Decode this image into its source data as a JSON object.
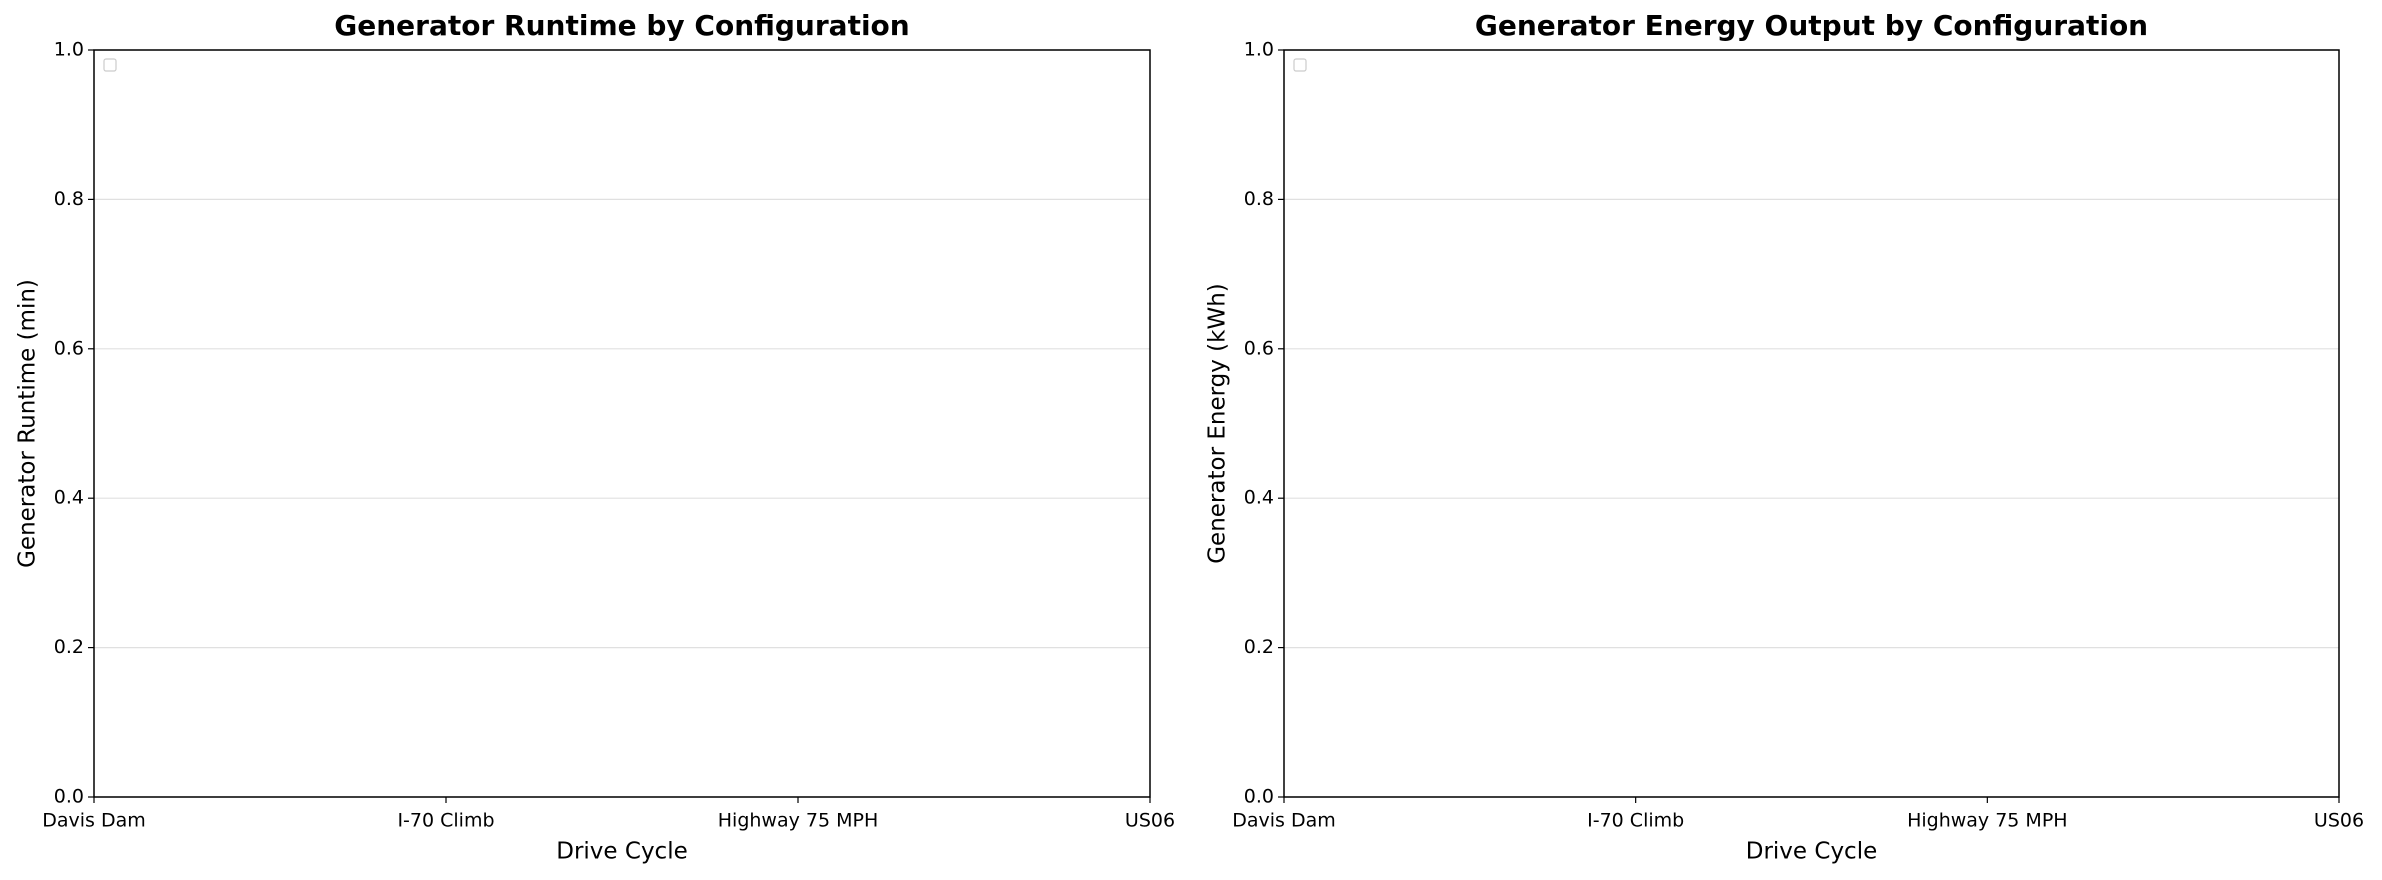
{
  "chart_data": [
    {
      "type": "bar",
      "title": "Generator Runtime by Configuration",
      "x_label": "Drive Cycle",
      "y_label": "Generator Runtime (min)",
      "categories": [
        "Davis Dam",
        "I-70 Climb",
        "Highway 75 MPH",
        "US06"
      ],
      "series": [],
      "ylim": [
        0,
        1
      ],
      "yticks": [
        {
          "value": 0,
          "label": "0.0"
        },
        0.2,
        0.4,
        0.6,
        0.8,
        {
          "value": 1,
          "label": "1.0"
        }
      ],
      "grid": true,
      "legend": "upper left"
    },
    {
      "type": "bar",
      "title": "Generator Energy Output by Configuration",
      "x_label": "Drive Cycle",
      "y_label": "Generator Energy (kWh)",
      "categories": [
        "Davis Dam",
        "I-70 Climb",
        "Highway 75 MPH",
        "US06"
      ],
      "series": [],
      "ylim": [
        0,
        1
      ],
      "yticks": [
        {
          "value": 0,
          "label": "0.0"
        },
        0.2,
        0.4,
        0.6,
        0.8,
        {
          "value": 1,
          "label": "1.0"
        }
      ],
      "grid": true,
      "legend": "upper left"
    }
  ]
}
